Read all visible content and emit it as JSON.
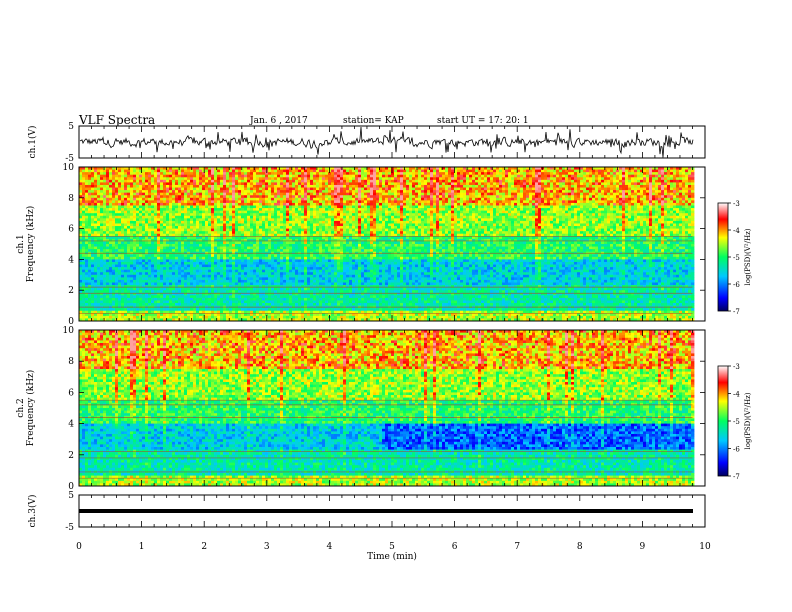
{
  "header": {
    "title": "VLF Spectra",
    "date": "Jan. 6 , 2017",
    "station": "station= KAP",
    "start": "start UT = 17: 20: 1"
  },
  "chart_data": [
    {
      "type": "line",
      "name": "ch1-waveform",
      "ylabel": "ch.1(V)",
      "ylim": [
        -5,
        5
      ],
      "yticks": [
        "5",
        "-5"
      ],
      "xlim": [
        0,
        10
      ]
    },
    {
      "type": "heatmap",
      "name": "ch1-spectrogram",
      "ylabel_top": "ch.1",
      "ylabel": "Frequency (kHz)",
      "ylim": [
        0,
        10
      ],
      "yticks": [
        "0",
        "2",
        "4",
        "6",
        "8",
        "10"
      ],
      "xlim": [
        0,
        10
      ],
      "data_end_min": 9.8,
      "colorbar": {
        "label": "log(PSD)(V²/Hz)",
        "range": [
          -7,
          -3
        ],
        "ticks": [
          "-3",
          "-4",
          "-5",
          "-6",
          "-7"
        ]
      }
    },
    {
      "type": "heatmap",
      "name": "ch2-spectrogram",
      "ylabel_top": "ch.2",
      "ylabel": "Frequency (kHz)",
      "ylim": [
        0,
        10
      ],
      "yticks": [
        "0",
        "2",
        "4",
        "6",
        "8",
        "10"
      ],
      "xlim": [
        0,
        10
      ],
      "data_end_min": 9.8,
      "colorbar": {
        "label": "log(PSD)(V²/Hz)",
        "range": [
          -7,
          -3
        ],
        "ticks": [
          "-3",
          "-4",
          "-5",
          "-6",
          "-7"
        ]
      }
    },
    {
      "type": "line",
      "name": "ch3-waveform",
      "ylabel": "ch.3(V)",
      "ylim": [
        -5,
        5
      ],
      "yticks": [
        "5",
        "-5"
      ],
      "xlim": [
        0,
        10
      ],
      "xlabel": "Time (min)",
      "xticks": [
        "0",
        "1",
        "2",
        "3",
        "4",
        "5",
        "6",
        "7",
        "8",
        "9",
        "10"
      ],
      "level": 0
    }
  ]
}
